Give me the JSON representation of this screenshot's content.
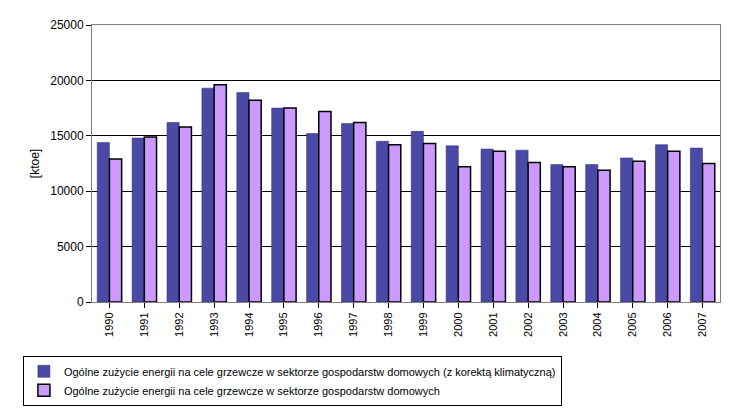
{
  "chart_data": {
    "type": "bar",
    "y_label": "[ktoe]",
    "categories": [
      "1990",
      "1991",
      "1992",
      "1993",
      "1994",
      "1995",
      "1996",
      "1997",
      "1998",
      "1999",
      "2000",
      "2001",
      "2002",
      "2003",
      "2004",
      "2005",
      "2006",
      "2007"
    ],
    "series": [
      {
        "name": "Ogólne zużycie energii na cele grzewcze w sektorze gospodarstw domowych (z korektą klimatyczną)",
        "color": "#4a4aa6",
        "values": [
          14400,
          14800,
          16200,
          19300,
          18900,
          17500,
          15200,
          16100,
          14500,
          15400,
          14100,
          13800,
          13700,
          12400,
          12400,
          13000,
          14200,
          13900
        ]
      },
      {
        "name": "Ogólne zużycie energii na cele grzewcze w sektorze gospodarstw domowych",
        "color": "#cc99ff",
        "values": [
          12900,
          14900,
          15800,
          19600,
          18200,
          17500,
          17200,
          16200,
          14200,
          14300,
          12200,
          13600,
          12600,
          12200,
          11900,
          12700,
          13600,
          12500
        ]
      }
    ],
    "ylim": [
      0,
      25000
    ],
    "yticks": [
      0,
      5000,
      10000,
      15000,
      20000,
      25000
    ],
    "grid": true,
    "legend": "bottom"
  }
}
